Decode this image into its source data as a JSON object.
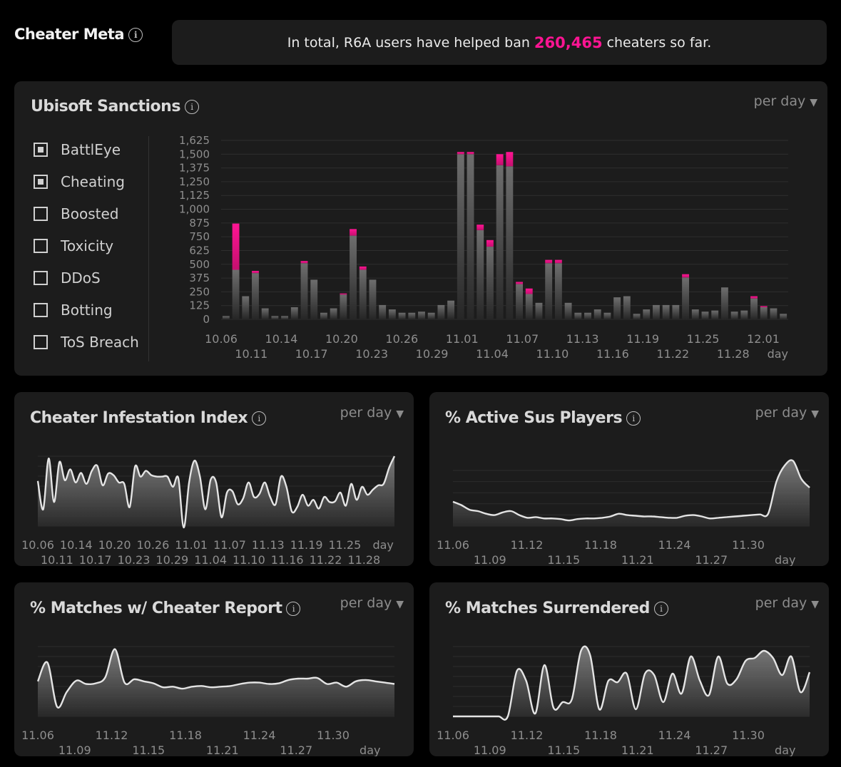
{
  "header": {
    "title": "Cheater Meta",
    "info": "i"
  },
  "banner": {
    "prefix": "In total, R6A users have helped ban",
    "count": "260,465",
    "suffix": "cheaters so far."
  },
  "colors": {
    "accent": "#ff1493",
    "panel": "#1c1c1c",
    "bar": "#5a5a5a"
  },
  "sanctions": {
    "title": "Ubisoft Sanctions",
    "info": "i",
    "period_label": "per day",
    "caret": "▼",
    "legend": [
      {
        "label": "BattlEye",
        "checked": true
      },
      {
        "label": "Cheating",
        "checked": true
      },
      {
        "label": "Boosted",
        "checked": false
      },
      {
        "label": "Toxicity",
        "checked": false
      },
      {
        "label": "DDoS",
        "checked": false
      },
      {
        "label": "Botting",
        "checked": false
      },
      {
        "label": "ToS Breach",
        "checked": false
      }
    ]
  },
  "chart_data": [
    {
      "type": "bar",
      "title": "Ubisoft Sanctions",
      "ylim": [
        0,
        1625
      ],
      "yticks": [
        "1,625",
        "1,500",
        "1,375",
        "1,250",
        "1,125",
        "1,000",
        "875",
        "750",
        "625",
        "500",
        "375",
        "250",
        "125",
        "0"
      ],
      "xticks_top": [
        "10.06",
        "10.14",
        "10.20",
        "10.26",
        "11.01",
        "11.07",
        "11.13",
        "11.19",
        "11.25",
        "12.01"
      ],
      "xticks_bottom": [
        "10.11",
        "10.17",
        "10.23",
        "10.29",
        "11.04",
        "11.10",
        "11.16",
        "11.22",
        "11.28"
      ],
      "xlabel": "day",
      "series": [
        {
          "name": "BattlEye",
          "values": [
            30,
            450,
            210,
            420,
            100,
            30,
            30,
            110,
            510,
            360,
            60,
            100,
            225,
            760,
            450,
            360,
            130,
            90,
            60,
            60,
            70,
            60,
            130,
            170,
            1500,
            1500,
            810,
            660,
            1400,
            1390,
            320,
            230,
            150,
            510,
            510,
            150,
            60,
            60,
            90,
            60,
            200,
            210,
            50,
            90,
            130,
            130,
            130,
            380,
            90,
            70,
            80,
            290,
            70,
            80,
            190,
            110,
            100,
            50
          ]
        },
        {
          "name": "Cheating",
          "values": [
            0,
            420,
            0,
            20,
            0,
            0,
            0,
            0,
            20,
            0,
            0,
            0,
            10,
            60,
            30,
            0,
            0,
            0,
            0,
            0,
            0,
            0,
            0,
            0,
            20,
            20,
            50,
            60,
            100,
            130,
            20,
            50,
            0,
            30,
            30,
            0,
            0,
            0,
            0,
            0,
            0,
            0,
            0,
            0,
            0,
            0,
            0,
            30,
            0,
            0,
            0,
            0,
            0,
            0,
            20,
            10,
            0,
            0
          ]
        }
      ]
    },
    {
      "type": "area",
      "title": "Cheater Infestation Index",
      "xticks_top": [
        "10.06",
        "10.14",
        "10.20",
        "10.26",
        "11.01",
        "11.07",
        "11.13",
        "11.19",
        "11.25",
        "day"
      ],
      "xticks_bottom": [
        "10.11",
        "10.17",
        "10.23",
        "10.29",
        "11.04",
        "11.10",
        "11.16",
        "11.22",
        "11.28"
      ],
      "values": [
        0.64,
        0.25,
        0.95,
        0.35,
        0.9,
        0.65,
        0.8,
        0.62,
        0.75,
        0.6,
        0.78,
        0.85,
        0.58,
        0.74,
        0.72,
        0.62,
        0.6,
        0.28,
        0.84,
        0.7,
        0.78,
        0.72,
        0.7,
        0.7,
        0.7,
        0.56,
        0.68,
        0.0,
        0.62,
        0.92,
        0.7,
        0.25,
        0.66,
        0.62,
        0.14,
        0.48,
        0.5,
        0.32,
        0.4,
        0.62,
        0.42,
        0.46,
        0.62,
        0.42,
        0.32,
        0.7,
        0.56,
        0.22,
        0.28,
        0.45,
        0.3,
        0.38,
        0.26,
        0.42,
        0.35,
        0.36,
        0.48,
        0.3,
        0.6,
        0.38,
        0.56,
        0.45,
        0.52,
        0.58,
        0.6,
        0.82,
        0.98
      ]
    },
    {
      "type": "area",
      "title": "% Active Sus Players",
      "xticks_top": [
        "11.06",
        "11.12",
        "11.18",
        "11.24",
        "11.30"
      ],
      "xticks_bottom": [
        "11.09",
        "11.15",
        "11.21",
        "11.27",
        "day"
      ],
      "values": [
        0.3,
        0.25,
        0.18,
        0.16,
        0.12,
        0.1,
        0.14,
        0.16,
        0.1,
        0.06,
        0.07,
        0.05,
        0.05,
        0.04,
        0.02,
        0.04,
        0.05,
        0.05,
        0.06,
        0.08,
        0.12,
        0.1,
        0.09,
        0.08,
        0.08,
        0.07,
        0.06,
        0.06,
        0.09,
        0.1,
        0.08,
        0.05,
        0.06,
        0.07,
        0.08,
        0.09,
        0.1,
        0.11,
        0.12,
        0.6,
        0.84,
        0.91,
        0.64,
        0.51
      ]
    },
    {
      "type": "area",
      "title": "% Matches w/ Cheater Report",
      "xticks_top": [
        "11.06",
        "11.12",
        "11.18",
        "11.24",
        "11.30"
      ],
      "xticks_bottom": [
        "11.09",
        "11.15",
        "11.21",
        "11.27",
        "day"
      ],
      "values": [
        0.46,
        0.74,
        0.08,
        0.3,
        0.47,
        0.42,
        0.43,
        0.52,
        0.94,
        0.44,
        0.49,
        0.46,
        0.43,
        0.37,
        0.38,
        0.35,
        0.38,
        0.39,
        0.37,
        0.38,
        0.39,
        0.42,
        0.44,
        0.44,
        0.42,
        0.43,
        0.48,
        0.5,
        0.5,
        0.51,
        0.42,
        0.44,
        0.38,
        0.46,
        0.48,
        0.46,
        0.44,
        0.42
      ]
    },
    {
      "type": "area",
      "title": "% Matches Surrendered",
      "xticks_top": [
        "11.06",
        "11.12",
        "11.18",
        "11.24",
        "11.30"
      ],
      "xticks_bottom": [
        "11.09",
        "11.15",
        "11.21",
        "11.27",
        "day"
      ],
      "values": [
        0.0,
        0.0,
        0.0,
        0.0,
        0.0,
        0.0,
        0.0,
        0.64,
        0.5,
        0.04,
        0.72,
        0.12,
        0.2,
        0.24,
        0.92,
        0.86,
        0.1,
        0.5,
        0.48,
        0.6,
        0.1,
        0.6,
        0.58,
        0.2,
        0.6,
        0.32,
        0.84,
        0.5,
        0.3,
        0.84,
        0.46,
        0.52,
        0.78,
        0.82,
        0.92,
        0.82,
        0.58,
        0.84,
        0.34,
        0.62
      ]
    }
  ],
  "panels": {
    "infestation": {
      "title": "Cheater Infestation Index",
      "info": "i",
      "period_label": "per day",
      "caret": "▼"
    },
    "sus": {
      "title": "% Active Sus Players",
      "info": "i",
      "period_label": "per day",
      "caret": "▼"
    },
    "report": {
      "title": "% Matches w/ Cheater Report",
      "info": "i",
      "period_label": "per day",
      "caret": "▼"
    },
    "surrender": {
      "title": "% Matches Surrendered",
      "info": "i",
      "period_label": "per day",
      "caret": "▼"
    }
  }
}
